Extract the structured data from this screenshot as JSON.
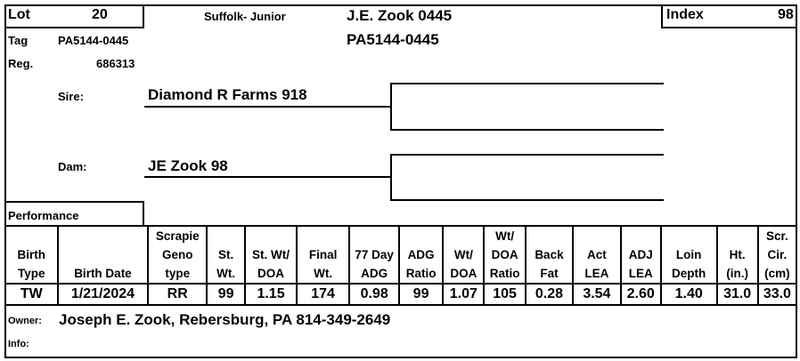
{
  "header": {
    "lot_label": "Lot",
    "lot_value": "20",
    "breed_class": "Suffolk- Junior",
    "animal_name": "J.E. Zook 0445",
    "animal_tag": "PA5144-0445",
    "index_label": "Index",
    "index_value": "98"
  },
  "identity": {
    "tag_label": "Tag",
    "tag_value": "PA5144-0445",
    "reg_label": "Reg.",
    "reg_value": "686313"
  },
  "pedigree": {
    "sire_label": "Sire:",
    "sire_value": "Diamond R Farms 918",
    "dam_label": "Dam:",
    "dam_value": "JE Zook 98"
  },
  "performance": {
    "section_label": "Performance",
    "columns": [
      [
        "",
        "Birth",
        "Type"
      ],
      [
        "",
        "",
        "Birth Date"
      ],
      [
        "Scrapie",
        "Geno",
        "type"
      ],
      [
        "",
        "St.",
        "Wt."
      ],
      [
        "",
        "St. Wt/",
        "DOA"
      ],
      [
        "",
        "Final",
        "Wt."
      ],
      [
        "",
        "77 Day",
        "ADG"
      ],
      [
        "",
        "ADG",
        "Ratio"
      ],
      [
        "",
        "Wt/",
        "DOA"
      ],
      [
        "Wt/",
        "DOA",
        "Ratio"
      ],
      [
        "",
        "Back",
        "Fat"
      ],
      [
        "",
        "Act",
        "LEA"
      ],
      [
        "",
        "ADJ",
        "LEA"
      ],
      [
        "",
        "Loin",
        "Depth"
      ],
      [
        "",
        "Ht.",
        "(in.)"
      ],
      [
        "Scr.",
        "Cir.",
        "(cm)"
      ]
    ],
    "values": [
      "TW",
      "1/21/2024",
      "RR",
      "99",
      "1.15",
      "174",
      "0.98",
      "99",
      "1.07",
      "105",
      "0.28",
      "3.54",
      "2.60",
      "1.40",
      "31.0",
      "33.0"
    ]
  },
  "owner": {
    "label": "Owner:",
    "value": "Joseph E. Zook, Rebersburg, PA 814-349-2649"
  },
  "info": {
    "label": "Info:",
    "value": ""
  }
}
